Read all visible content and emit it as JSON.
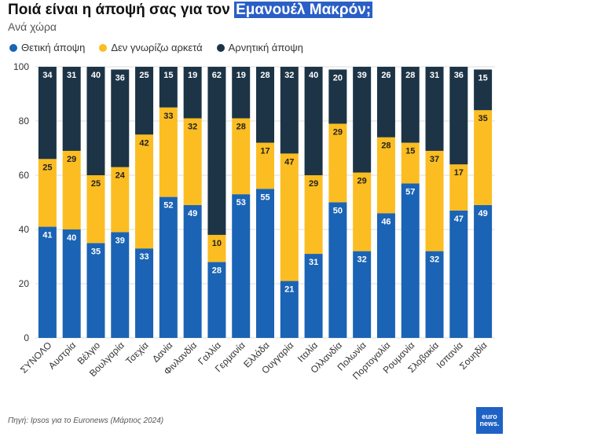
{
  "header": {
    "title_prefix": "Ποιά είναι η άποψή σας για τον ",
    "title_highlight": "Εμανουέλ Μακρόν;",
    "subtitle": "Ανά χώρα"
  },
  "source": "Πηγή: Ipsos για το Euronews (Μάρτιος 2024)",
  "logo": {
    "line1": "euro",
    "line2": "news."
  },
  "colors": {
    "positive": "#1b63b4",
    "unknown": "#fbbd21",
    "negative": "#1c3446",
    "title_highlight": "#2a5fc7"
  },
  "chart_data": {
    "type": "bar",
    "stacked": true,
    "categories": [
      "ΣΥΝΟΛΟ",
      "Αυστρία",
      "Βέλγιο",
      "Βουλγαρία",
      "Τσεχία",
      "Δανία",
      "Φινλανδία",
      "Γαλλία",
      "Γερμανία",
      "Ελλάδα",
      "Ουγγαρία",
      "Ιταλία",
      "Ολλανδία",
      "Πολωνία",
      "Πορτογαλία",
      "Ρουμανία",
      "Σλοβακία",
      "Ισπανία",
      "Σουηδία"
    ],
    "series": [
      {
        "name": "Θετική άποψη",
        "color": "#1b63b4",
        "values": [
          41,
          40,
          35,
          39,
          33,
          52,
          49,
          28,
          53,
          55,
          21,
          31,
          50,
          32,
          46,
          57,
          32,
          47,
          49
        ]
      },
      {
        "name": "Δεν γνωρίζω αρκετά",
        "color": "#fbbd21",
        "values": [
          25,
          29,
          25,
          24,
          42,
          33,
          32,
          10,
          28,
          17,
          47,
          29,
          29,
          29,
          28,
          15,
          37,
          17,
          35
        ]
      },
      {
        "name": "Αρνητική άποψη",
        "color": "#1c3446",
        "values": [
          34,
          31,
          40,
          36,
          25,
          15,
          19,
          62,
          19,
          28,
          32,
          40,
          20,
          39,
          26,
          28,
          31,
          36,
          15
        ]
      }
    ],
    "ylim": [
      0,
      100
    ],
    "yticks": [
      0,
      20,
      40,
      60,
      80,
      100
    ],
    "grid": true,
    "legend_position": "top-left"
  }
}
